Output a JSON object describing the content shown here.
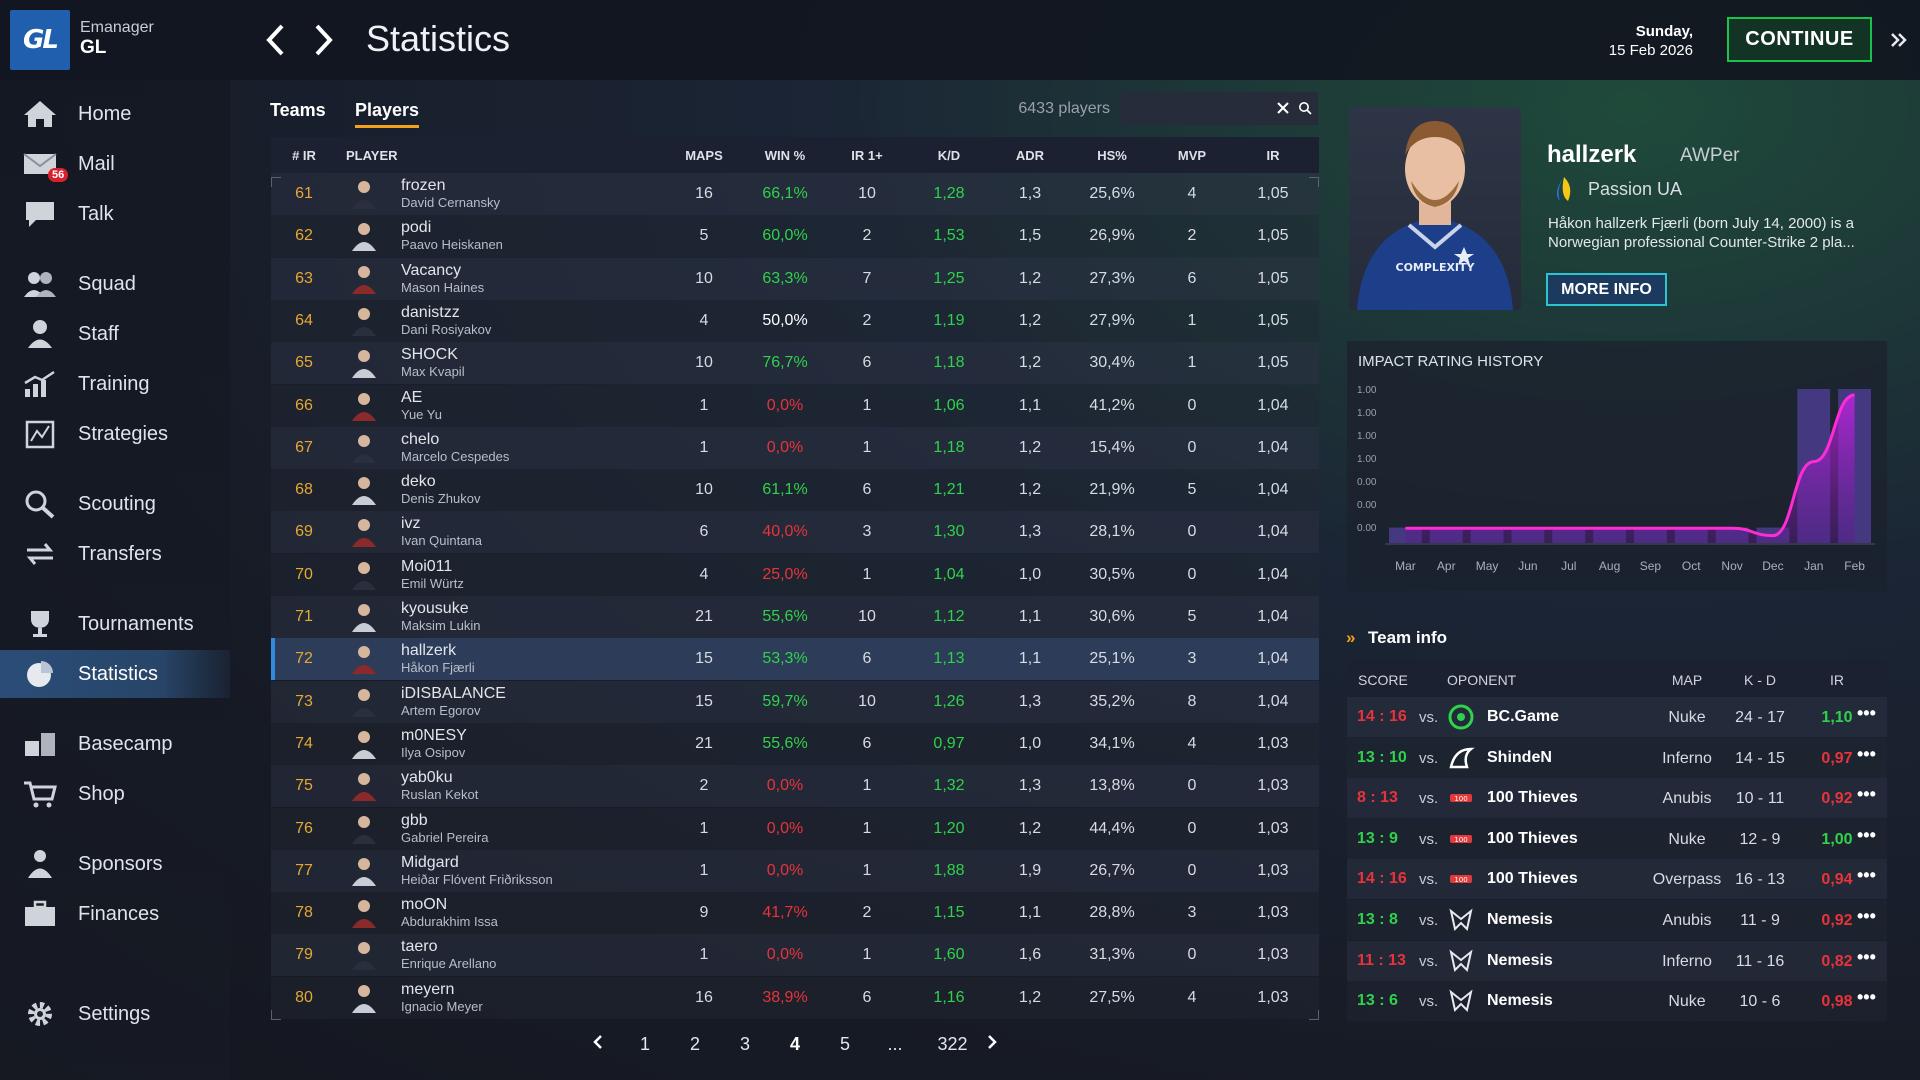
{
  "app": {
    "brand_small": "Emanager",
    "brand_big": "GL",
    "logo_text": "GL",
    "page_title": "Statistics",
    "date_day": "Sunday,",
    "date_full": "15 Feb 2026",
    "continue_label": "CONTINUE"
  },
  "sidebar": {
    "mail_badge": "56",
    "items": [
      {
        "label": "Home",
        "icon": "home-icon"
      },
      {
        "label": "Mail",
        "icon": "mail-icon"
      },
      {
        "label": "Talk",
        "icon": "chat-icon"
      },
      {
        "label": "Squad",
        "icon": "squad-icon"
      },
      {
        "label": "Staff",
        "icon": "staff-icon"
      },
      {
        "label": "Training",
        "icon": "training-icon"
      },
      {
        "label": "Strategies",
        "icon": "strategies-icon"
      },
      {
        "label": "Scouting",
        "icon": "scouting-icon"
      },
      {
        "label": "Transfers",
        "icon": "transfers-icon"
      },
      {
        "label": "Tournaments",
        "icon": "trophy-icon"
      },
      {
        "label": "Statistics",
        "icon": "pie-chart-icon"
      },
      {
        "label": "Basecamp",
        "icon": "basecamp-icon"
      },
      {
        "label": "Shop",
        "icon": "cart-icon"
      },
      {
        "label": "Sponsors",
        "icon": "sponsors-icon"
      },
      {
        "label": "Finances",
        "icon": "briefcase-icon"
      },
      {
        "label": "Settings",
        "icon": "gear-icon"
      }
    ]
  },
  "tabs": {
    "teams": "Teams",
    "players": "Players"
  },
  "search": {
    "count": "6433 players",
    "value": "",
    "placeholder": ""
  },
  "table": {
    "headers": [
      "# IR",
      "PLAYER",
      "MAPS",
      "WIN %",
      "IR 1+",
      "K/D",
      "ADR",
      "HS%",
      "MVP",
      "IR"
    ],
    "rows": [
      {
        "rank": "61",
        "nick": "frozen",
        "name": "David Cernansky",
        "maps": "16",
        "win": "66,1%",
        "win_c": "green",
        "ir1": "10",
        "kd": "1,28",
        "kd_c": "green",
        "adr": "1,3",
        "hs": "25,6%",
        "mvp": "4",
        "ir": "1,05"
      },
      {
        "rank": "62",
        "nick": "podi",
        "name": "Paavo Heiskanen",
        "maps": "5",
        "win": "60,0%",
        "win_c": "green",
        "ir1": "2",
        "kd": "1,53",
        "kd_c": "green",
        "adr": "1,5",
        "hs": "26,9%",
        "mvp": "2",
        "ir": "1,05"
      },
      {
        "rank": "63",
        "nick": "Vacancy",
        "name": "Mason Haines",
        "maps": "10",
        "win": "63,3%",
        "win_c": "green",
        "ir1": "7",
        "kd": "1,25",
        "kd_c": "green",
        "adr": "1,2",
        "hs": "27,3%",
        "mvp": "6",
        "ir": "1,05"
      },
      {
        "rank": "64",
        "nick": "danistzz",
        "name": "Dani Rosiyakov",
        "maps": "4",
        "win": "50,0%",
        "win_c": "white",
        "ir1": "2",
        "kd": "1,19",
        "kd_c": "green",
        "adr": "1,2",
        "hs": "27,9%",
        "mvp": "1",
        "ir": "1,05"
      },
      {
        "rank": "65",
        "nick": "SHOCK",
        "name": "Max Kvapil",
        "maps": "10",
        "win": "76,7%",
        "win_c": "green",
        "ir1": "6",
        "kd": "1,18",
        "kd_c": "green",
        "adr": "1,2",
        "hs": "30,4%",
        "mvp": "1",
        "ir": "1,05"
      },
      {
        "rank": "66",
        "nick": "AE",
        "name": "Yue Yu",
        "maps": "1",
        "win": "0,0%",
        "win_c": "red",
        "ir1": "1",
        "kd": "1,06",
        "kd_c": "green",
        "adr": "1,1",
        "hs": "41,2%",
        "mvp": "0",
        "ir": "1,04"
      },
      {
        "rank": "67",
        "nick": "chelo",
        "name": "Marcelo Cespedes",
        "maps": "1",
        "win": "0,0%",
        "win_c": "red",
        "ir1": "1",
        "kd": "1,18",
        "kd_c": "green",
        "adr": "1,2",
        "hs": "15,4%",
        "mvp": "0",
        "ir": "1,04"
      },
      {
        "rank": "68",
        "nick": "deko",
        "name": "Denis Zhukov",
        "maps": "10",
        "win": "61,1%",
        "win_c": "green",
        "ir1": "6",
        "kd": "1,21",
        "kd_c": "green",
        "adr": "1,2",
        "hs": "21,9%",
        "mvp": "5",
        "ir": "1,04"
      },
      {
        "rank": "69",
        "nick": "ivz",
        "name": "Ivan Quintana",
        "maps": "6",
        "win": "40,0%",
        "win_c": "red",
        "ir1": "3",
        "kd": "1,30",
        "kd_c": "green",
        "adr": "1,3",
        "hs": "28,1%",
        "mvp": "0",
        "ir": "1,04"
      },
      {
        "rank": "70",
        "nick": "Moi011",
        "name": "Emil Würtz",
        "maps": "4",
        "win": "25,0%",
        "win_c": "red",
        "ir1": "1",
        "kd": "1,04",
        "kd_c": "green",
        "adr": "1,0",
        "hs": "30,5%",
        "mvp": "0",
        "ir": "1,04"
      },
      {
        "rank": "71",
        "nick": "kyousuke",
        "name": "Maksim Lukin",
        "maps": "21",
        "win": "55,6%",
        "win_c": "green",
        "ir1": "10",
        "kd": "1,12",
        "kd_c": "green",
        "adr": "1,1",
        "hs": "30,6%",
        "mvp": "5",
        "ir": "1,04"
      },
      {
        "rank": "72",
        "nick": "hallzerk",
        "name": "Håkon Fjærli",
        "maps": "15",
        "win": "53,3%",
        "win_c": "green",
        "ir1": "6",
        "kd": "1,13",
        "kd_c": "green",
        "adr": "1,1",
        "hs": "25,1%",
        "mvp": "3",
        "ir": "1,04"
      },
      {
        "rank": "73",
        "nick": "iDISBALANCE",
        "name": "Artem Egorov",
        "maps": "15",
        "win": "59,7%",
        "win_c": "green",
        "ir1": "10",
        "kd": "1,26",
        "kd_c": "green",
        "adr": "1,3",
        "hs": "35,2%",
        "mvp": "8",
        "ir": "1,04"
      },
      {
        "rank": "74",
        "nick": "m0NESY",
        "name": "Ilya Osipov",
        "maps": "21",
        "win": "55,6%",
        "win_c": "green",
        "ir1": "6",
        "kd": "0,97",
        "kd_c": "green",
        "adr": "1,0",
        "hs": "34,1%",
        "mvp": "4",
        "ir": "1,03"
      },
      {
        "rank": "75",
        "nick": "yab0ku",
        "name": "Ruslan Kekot",
        "maps": "2",
        "win": "0,0%",
        "win_c": "red",
        "ir1": "1",
        "kd": "1,32",
        "kd_c": "green",
        "adr": "1,3",
        "hs": "13,8%",
        "mvp": "0",
        "ir": "1,03"
      },
      {
        "rank": "76",
        "nick": "gbb",
        "name": "Gabriel Pereira",
        "maps": "1",
        "win": "0,0%",
        "win_c": "red",
        "ir1": "1",
        "kd": "1,20",
        "kd_c": "green",
        "adr": "1,2",
        "hs": "44,4%",
        "mvp": "0",
        "ir": "1,03"
      },
      {
        "rank": "77",
        "nick": "Midgard",
        "name": "Heiðar Flóvent Friðriksson",
        "maps": "1",
        "win": "0,0%",
        "win_c": "red",
        "ir1": "1",
        "kd": "1,88",
        "kd_c": "green",
        "adr": "1,9",
        "hs": "26,7%",
        "mvp": "0",
        "ir": "1,03"
      },
      {
        "rank": "78",
        "nick": "moON",
        "name": "Abdurakhim Issa",
        "maps": "9",
        "win": "41,7%",
        "win_c": "red",
        "ir1": "2",
        "kd": "1,15",
        "kd_c": "green",
        "adr": "1,1",
        "hs": "28,8%",
        "mvp": "3",
        "ir": "1,03"
      },
      {
        "rank": "79",
        "nick": "taero",
        "name": "Enrique Arellano",
        "maps": "1",
        "win": "0,0%",
        "win_c": "red",
        "ir1": "1",
        "kd": "1,60",
        "kd_c": "green",
        "adr": "1,6",
        "hs": "31,3%",
        "mvp": "0",
        "ir": "1,03"
      },
      {
        "rank": "80",
        "nick": "meyern",
        "name": "Ignacio Meyer",
        "maps": "16",
        "win": "38,9%",
        "win_c": "red",
        "ir1": "6",
        "kd": "1,16",
        "kd_c": "green",
        "adr": "1,2",
        "hs": "27,5%",
        "mvp": "4",
        "ir": "1,03"
      }
    ]
  },
  "pagination": {
    "pages": [
      "1",
      "2",
      "3",
      "4",
      "5",
      "...",
      "322"
    ],
    "current": "4"
  },
  "player_card": {
    "nick": "hallzerk",
    "role": "AWPer",
    "team": "Passion UA",
    "bio_line1": "Håkon hallzerk Fjærli (born July 14, 2000) is a",
    "bio_line2": "Norwegian professional Counter-Strike 2 pla...",
    "more_label": "MORE INFO",
    "jersey_text": "COMPLEXITY"
  },
  "chart_data": {
    "type": "area",
    "title": "IMPACT RATING HISTORY",
    "y_tick_labels": [
      "1.00",
      "1.00",
      "1.00",
      "1.00",
      "0.00",
      "0.00",
      "0.00"
    ],
    "x": [
      "Mar",
      "Apr",
      "May",
      "Jun",
      "Jul",
      "Aug",
      "Sep",
      "Oct",
      "Nov",
      "Dec",
      "Jan",
      "Feb"
    ],
    "series": [
      {
        "values": [
          0.1,
          0.1,
          0.1,
          0.1,
          0.1,
          0.1,
          0.1,
          0.1,
          0.1,
          0.05,
          0.55,
          1.0
        ]
      }
    ],
    "bars": [
      0.1,
      0.1,
      0.1,
      0.1,
      0.1,
      0.1,
      0.1,
      0.1,
      0.1,
      0.1,
      1.0,
      1.0
    ],
    "grid": false,
    "colors": {
      "line": "#ff2bd6",
      "bars": "#4b3d8f"
    }
  },
  "team_info": {
    "title": "Team info",
    "headers": {
      "score": "SCORE",
      "opponent": "OPONENT",
      "map": "MAP",
      "kd": "K - D",
      "ir": "IR"
    },
    "vs": "vs.",
    "matches": [
      {
        "score": "14 : 16",
        "result": "loss",
        "opponent": "BC.Game",
        "logo": "bcgame-logo",
        "map": "Nuke",
        "kd": "24 - 17",
        "ir": "1,10",
        "ir_c": "green"
      },
      {
        "score": "13 : 10",
        "result": "win",
        "opponent": "ShindeN",
        "logo": "shinden-logo",
        "map": "Inferno",
        "kd": "14 - 15",
        "ir": "0,97",
        "ir_c": "red"
      },
      {
        "score": "8 : 13",
        "result": "loss",
        "opponent": "100 Thieves",
        "logo": "100thieves-logo",
        "map": "Anubis",
        "kd": "10 - 11",
        "ir": "0,92",
        "ir_c": "red"
      },
      {
        "score": "13 : 9",
        "result": "win",
        "opponent": "100 Thieves",
        "logo": "100thieves-logo",
        "map": "Nuke",
        "kd": "12 - 9",
        "ir": "1,00",
        "ir_c": "green"
      },
      {
        "score": "14 : 16",
        "result": "loss",
        "opponent": "100 Thieves",
        "logo": "100thieves-logo",
        "map": "Overpass",
        "kd": "16 - 13",
        "ir": "0,94",
        "ir_c": "red"
      },
      {
        "score": "13 : 8",
        "result": "win",
        "opponent": "Nemesis",
        "logo": "nemesis-logo",
        "map": "Anubis",
        "kd": "11 - 9",
        "ir": "0,92",
        "ir_c": "red"
      },
      {
        "score": "11 : 13",
        "result": "loss",
        "opponent": "Nemesis",
        "logo": "nemesis-logo",
        "map": "Inferno",
        "kd": "11 - 16",
        "ir": "0,82",
        "ir_c": "red"
      },
      {
        "score": "13 : 6",
        "result": "win",
        "opponent": "Nemesis",
        "logo": "nemesis-logo",
        "map": "Nuke",
        "kd": "10 - 6",
        "ir": "0,98",
        "ir_c": "red"
      }
    ]
  }
}
